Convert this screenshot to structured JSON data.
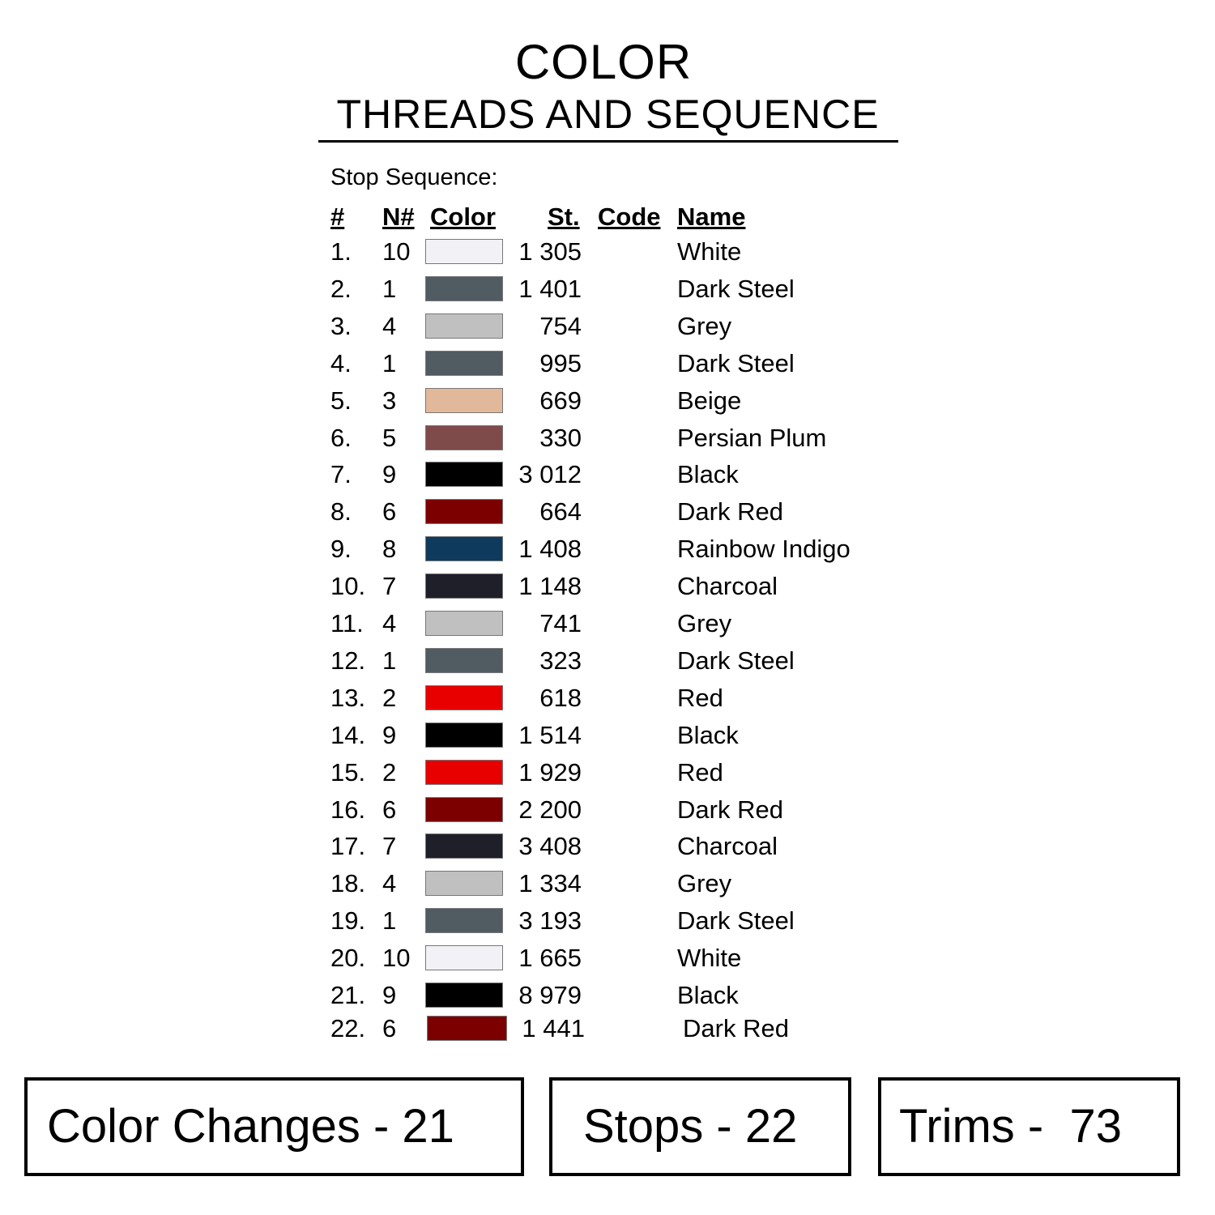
{
  "header": {
    "title": "COLOR",
    "subtitle": "THREADS AND SEQUENCE"
  },
  "stop_sequence_label": "Stop Sequence:",
  "columns": {
    "num": "#",
    "n": "N#",
    "color": "Color",
    "st": "St.",
    "code": "Code",
    "name": "Name"
  },
  "rows": [
    {
      "num": "1.",
      "n": "10",
      "color": "#f2f2f6",
      "st": "1 305",
      "name": "White"
    },
    {
      "num": "2.",
      "n": "1",
      "color": "#505c62",
      "st": "1 401",
      "name": "Dark Steel"
    },
    {
      "num": "3.",
      "n": "4",
      "color": "#c0c0c0",
      "st": "754",
      "name": "Grey"
    },
    {
      "num": "4.",
      "n": "1",
      "color": "#505c62",
      "st": "995",
      "name": "Dark Steel"
    },
    {
      "num": "5.",
      "n": "3",
      "color": "#e2b89a",
      "st": "669",
      "name": "Beige"
    },
    {
      "num": "6.",
      "n": "5",
      "color": "#7f4a4a",
      "st": "330",
      "name": "Persian Plum"
    },
    {
      "num": "7.",
      "n": "9",
      "color": "#000000",
      "st": "3 012",
      "name": "Black"
    },
    {
      "num": "8.",
      "n": "6",
      "color": "#7d0000",
      "st": "664",
      "name": "Dark Red"
    },
    {
      "num": "9.",
      "n": "8",
      "color": "#0e3a5e",
      "st": "1 408",
      "name": "Rainbow Indigo"
    },
    {
      "num": "10.",
      "n": "7",
      "color": "#1e1f28",
      "st": "1 148",
      "name": "Charcoal"
    },
    {
      "num": "11.",
      "n": "4",
      "color": "#c0c0c0",
      "st": "741",
      "name": "Grey"
    },
    {
      "num": "12.",
      "n": "1",
      "color": "#505c62",
      "st": "323",
      "name": "Dark Steel"
    },
    {
      "num": "13.",
      "n": "2",
      "color": "#e80000",
      "st": "618",
      "name": "Red"
    },
    {
      "num": "14.",
      "n": "9",
      "color": "#000000",
      "st": "1 514",
      "name": "Black"
    },
    {
      "num": "15.",
      "n": "2",
      "color": "#e80000",
      "st": "1 929",
      "name": "Red"
    },
    {
      "num": "16.",
      "n": "6",
      "color": "#7d0000",
      "st": "2 200",
      "name": "Dark Red"
    },
    {
      "num": "17.",
      "n": "7",
      "color": "#1e1f28",
      "st": "3 408",
      "name": "Charcoal"
    },
    {
      "num": "18.",
      "n": "4",
      "color": "#c0c0c0",
      "st": "1 334",
      "name": "Grey"
    },
    {
      "num": "19.",
      "n": "1",
      "color": "#505c62",
      "st": "3 193",
      "name": "Dark Steel"
    },
    {
      "num": "20.",
      "n": "10",
      "color": "#f2f2f6",
      "st": "1 665",
      "name": "White"
    },
    {
      "num": "21.",
      "n": "9",
      "color": "#000000",
      "st": "8 979",
      "name": "Black"
    },
    {
      "num": "22.",
      "n": "6",
      "color": "#7d0000",
      "st": "1 441",
      "name": "Dark Red"
    }
  ],
  "summary": {
    "color_changes": "Color Changes - 21",
    "stops": "Stops - 22",
    "trims": "Trims -  73"
  }
}
